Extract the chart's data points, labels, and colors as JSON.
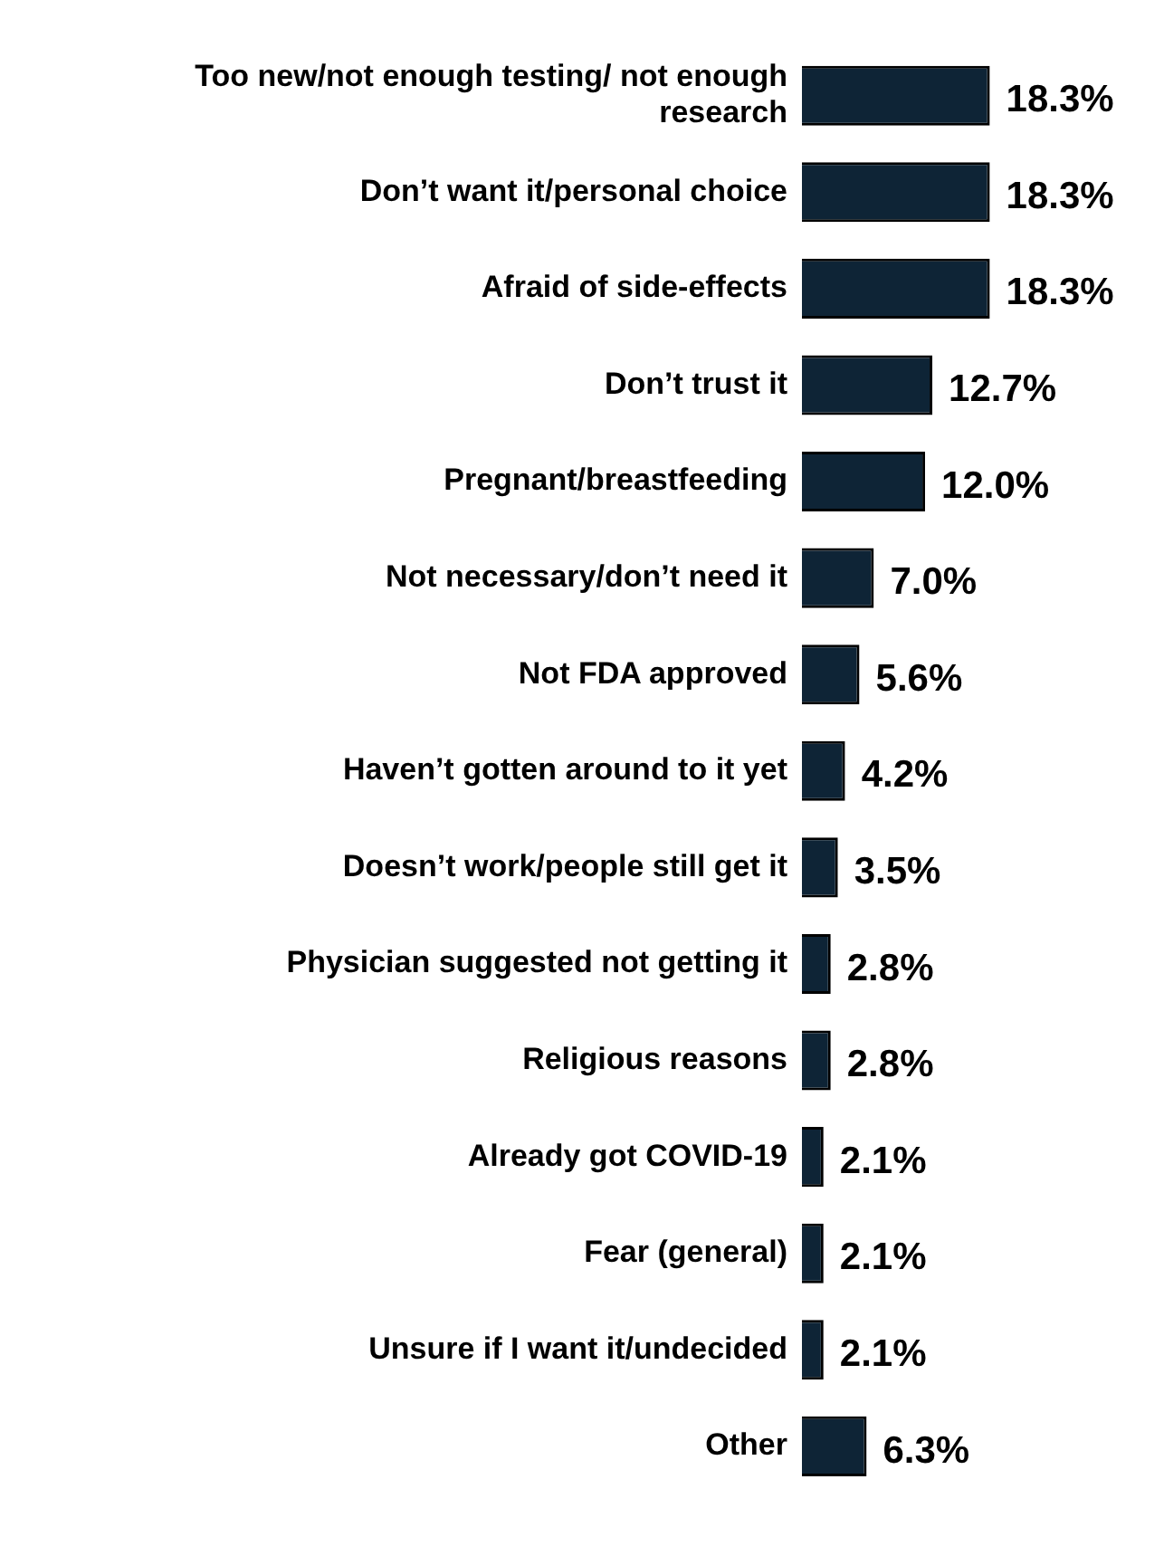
{
  "chart_data": {
    "type": "bar",
    "orientation": "horizontal",
    "categories": [
      "Too new/not enough testing/ not enough research",
      "Don’t want it/personal choice",
      "Afraid of side-effects",
      "Don’t trust it",
      "Pregnant/breastfeeding",
      "Not necessary/don’t need it",
      "Not FDA approved",
      "Haven’t gotten around to it yet",
      "Doesn’t work/people still get it",
      "Physician suggested not getting it",
      "Religious reasons",
      "Already got COVID-19",
      "Fear (general)",
      "Unsure if I want it/undecided",
      "Other"
    ],
    "values": [
      18.3,
      18.3,
      18.3,
      12.7,
      12.0,
      7.0,
      5.6,
      4.2,
      3.5,
      2.8,
      2.8,
      2.1,
      2.1,
      2.1,
      6.3
    ],
    "value_labels": [
      "18.3%",
      "18.3%",
      "18.3%",
      "12.7%",
      "12.0%",
      "7.0%",
      "5.6%",
      "4.2%",
      "3.5%",
      "2.8%",
      "2.8%",
      "2.1%",
      "2.1%",
      "2.1%",
      "6.3%"
    ],
    "color": "#0e2436",
    "legend": false
  }
}
